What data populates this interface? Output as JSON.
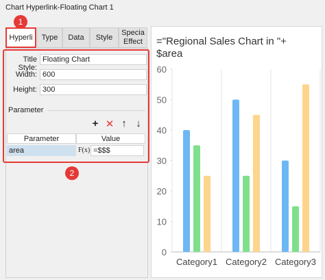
{
  "window": {
    "title": "Chart Hyperlink-Floating Chart 1"
  },
  "tabs": [
    "Hyperli",
    "Type",
    "Data",
    "Style",
    "Specia\nEffect"
  ],
  "callouts": [
    "1",
    "2"
  ],
  "form": {
    "title_style": {
      "label": "Title Style:",
      "value": "Floating Chart"
    },
    "width": {
      "label": "Width:",
      "value": "600"
    },
    "height": {
      "label": "Height:",
      "value": "300"
    },
    "parameter_section": "Parameter",
    "table": {
      "headers": [
        "Parameter",
        "Value"
      ],
      "rows": [
        [
          "area",
          "F(x)",
          "=$$$"
        ]
      ]
    }
  },
  "chart_data": {
    "type": "bar",
    "title": "=\"Regional Sales Chart in \"+\n$area",
    "categories": [
      "Category1",
      "Category2",
      "Category3"
    ],
    "series": [
      {
        "color": "#6db8f4",
        "values": [
          40,
          50,
          30
        ]
      },
      {
        "color": "#7fe08b",
        "values": [
          35,
          25,
          15
        ]
      },
      {
        "color": "#fdd58c",
        "values": [
          25,
          45,
          55
        ]
      }
    ],
    "ylim": [
      0,
      60
    ],
    "yticks": [
      0,
      10,
      20,
      30,
      40,
      50,
      60
    ],
    "grid": false
  }
}
